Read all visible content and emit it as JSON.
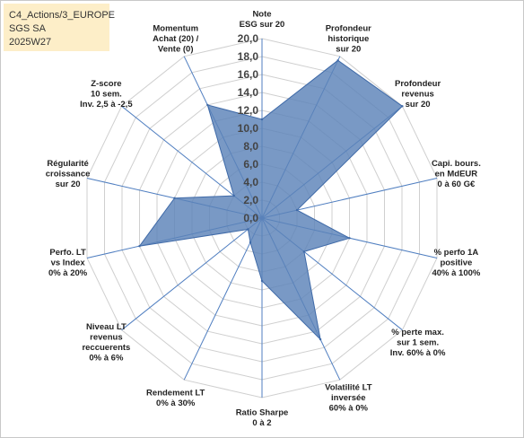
{
  "header": {
    "line1": "C4_Actions/3_EUROPE",
    "line2": "SGS SA",
    "line3": "2025W27"
  },
  "colors": {
    "fill": "#5b82b8",
    "stroke": "#3f6aa8",
    "grid": "#cfcfcf",
    "spoke": "#4f7ec0",
    "info_bg": "#fdeec8"
  },
  "chart_data": {
    "type": "radar",
    "rmax": 20,
    "ticks": [
      "0,0",
      "2,0",
      "4,0",
      "6,0",
      "8,0",
      "10,0",
      "12,0",
      "14,0",
      "16,0",
      "18,0",
      "20,0"
    ],
    "axes": [
      {
        "label": [
          "Note",
          "ESG sur 20"
        ],
        "value": 11
      },
      {
        "label": [
          "Profondeur",
          "historique",
          "sur 20"
        ],
        "value": 19.5
      },
      {
        "label": [
          "Profondeur",
          "revenus",
          "sur 20"
        ],
        "value": 20
      },
      {
        "label": [
          "Capi. bours.",
          "en MdEUR",
          "0 à 60 G€"
        ],
        "value": 4
      },
      {
        "label": [
          "% perfo 1A",
          "positive",
          "40% à 100%"
        ],
        "value": 10
      },
      {
        "label": [
          "% perte max.",
          "sur 1 sem.",
          "Inv. 60% à 0%"
        ],
        "value": 6
      },
      {
        "label": [
          "Volatilité LT",
          "inversée",
          "60% à 0%"
        ],
        "value": 15
      },
      {
        "label": [
          "Ratio Sharpe",
          "0 à 2"
        ],
        "value": 7
      },
      {
        "label": [
          "Rendement LT",
          "0% à 30%"
        ],
        "value": 3
      },
      {
        "label": [
          "Niveau LT",
          "revenus",
          "reccuerents",
          "0% à 6%"
        ],
        "value": 2
      },
      {
        "label": [
          "Perfo. LT",
          "vs Index",
          "0% à 20%"
        ],
        "value": 14
      },
      {
        "label": [
          "Régularité",
          "croissance",
          "sur 20"
        ],
        "value": 10
      },
      {
        "label": [
          "Z-score",
          "10 sem.",
          "Inv. 2,5 à -2,5"
        ],
        "value": 4
      },
      {
        "label": [
          "Momentum",
          "Achat (20) /",
          "Vente (0)"
        ],
        "value": 14
      }
    ]
  }
}
